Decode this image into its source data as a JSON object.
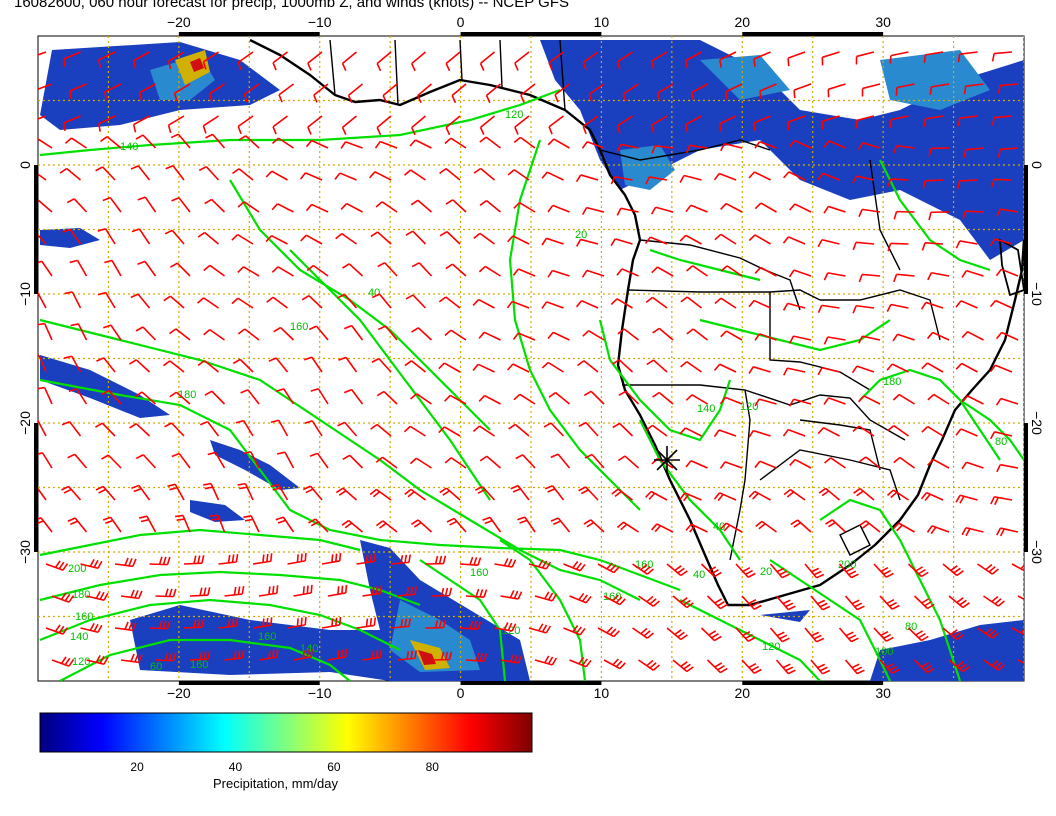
{
  "title": "16082600, 060 hour forecast for precip, 1000mb Z, and winds (knots) -- NCEP GFS",
  "map": {
    "lon_range": [
      -30,
      40
    ],
    "lat_range": [
      -40,
      10
    ],
    "lon_ticks": [
      -20,
      -10,
      0,
      10,
      20,
      30
    ],
    "lat_ticks": [
      0,
      -10,
      -20,
      -30
    ],
    "lon_tick_labels": [
      "−20",
      "−10",
      "0",
      "10",
      "20",
      "30"
    ],
    "lat_tick_labels": [
      "0",
      "−10",
      "−20",
      "−30"
    ],
    "contour_labels": [
      "140",
      "120",
      "20",
      "40",
      "160",
      "180",
      "200",
      "180",
      "160",
      "140",
      "120",
      "160",
      "140",
      "160",
      "120",
      "160",
      "40",
      "20",
      "140",
      "180",
      "80",
      "80",
      "120",
      "100",
      "200",
      "160",
      "40",
      "60",
      "160",
      "120"
    ],
    "colors": {
      "wind_barb": "#ff0000",
      "contour": "#00ee00",
      "land": "#000000",
      "grid": "#d4aa00"
    }
  },
  "colorbar": {
    "ticks": [
      "20",
      "40",
      "60",
      "80"
    ],
    "tick_values": [
      20,
      40,
      60,
      80
    ],
    "range": [
      0,
      100
    ],
    "label": "Precipitation, mm/day",
    "colors": [
      "#00007f",
      "#0000ff",
      "#007fff",
      "#00ffff",
      "#7fff7f",
      "#ffff00",
      "#ff7f00",
      "#ff0000",
      "#7f0000"
    ]
  }
}
